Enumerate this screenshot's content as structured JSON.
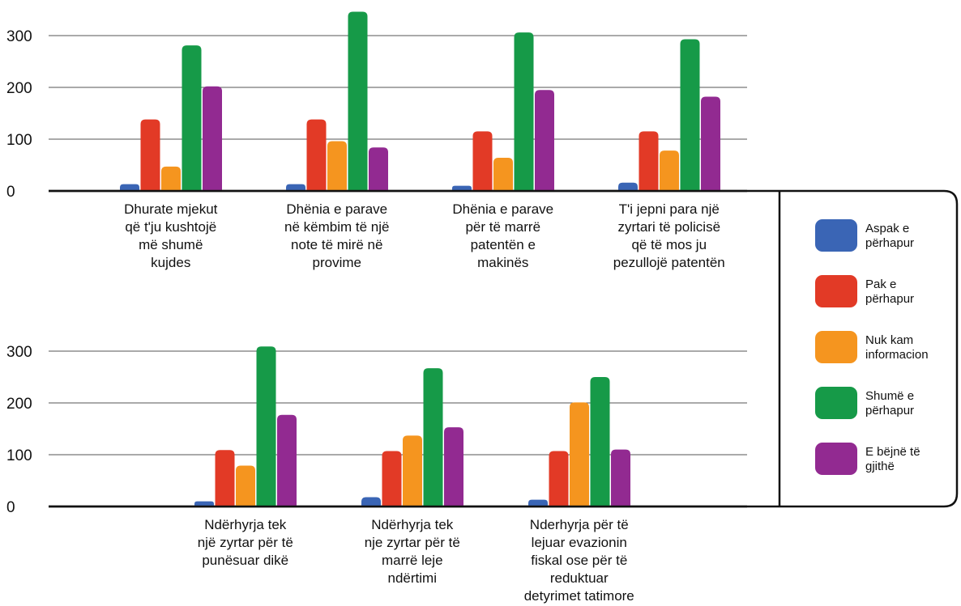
{
  "chart_data": [
    {
      "type": "bar",
      "ylim": [
        0,
        350
      ],
      "yticks": [
        0,
        100,
        200,
        300
      ],
      "grid": true,
      "categories": [
        [
          "Dhurate mjekut",
          "që t'ju kushtojë",
          "më shumë",
          "kujdes"
        ],
        [
          "Dhënia e parave",
          "në këmbim të një",
          "note të mirë në",
          "provime"
        ],
        [
          "Dhënia e parave",
          "për të marrë",
          "patentën e",
          "makinës"
        ],
        [
          "T'i jepni para një",
          "zyrtari të policisë",
          "që të mos ju",
          "pezullojë patentën"
        ]
      ],
      "series": [
        {
          "name": "Aspak e përhapur",
          "values": [
            13,
            13,
            10,
            16
          ]
        },
        {
          "name": "Pak e përhapur",
          "values": [
            138,
            138,
            115,
            115
          ]
        },
        {
          "name": "Nuk kam informacion",
          "values": [
            47,
            96,
            64,
            78
          ]
        },
        {
          "name": "Shumë e përhapur",
          "values": [
            281,
            346,
            306,
            293
          ]
        },
        {
          "name": "E bëjnë të gjithë",
          "values": [
            202,
            84,
            195,
            182
          ]
        }
      ]
    },
    {
      "type": "bar",
      "ylim": [
        0,
        350
      ],
      "yticks": [
        0,
        100,
        200,
        300
      ],
      "grid": true,
      "categories": [
        [
          "Ndërhyrja tek",
          "një zyrtar për të",
          "punësuar dikë"
        ],
        [
          "Ndërhyrja tek",
          "nje zyrtar për të",
          "marrë leje",
          "ndërtimi"
        ],
        [
          "Nderhyrja për të",
          "lejuar evazionin",
          "fiskal ose për të",
          "reduktuar",
          "detyrimet tatimore"
        ]
      ],
      "series": [
        {
          "name": "Aspak e përhapur",
          "values": [
            10,
            18,
            13
          ]
        },
        {
          "name": "Pak e përhapur",
          "values": [
            109,
            107,
            107
          ]
        },
        {
          "name": "Nuk kam informacion",
          "values": [
            79,
            137,
            201
          ]
        },
        {
          "name": "Shumë e përhapur",
          "values": [
            309,
            267,
            250
          ]
        },
        {
          "name": "E bëjnë të gjithë",
          "values": [
            177,
            153,
            110
          ]
        }
      ]
    }
  ],
  "legend": {
    "placement": "right",
    "items": [
      {
        "label": [
          "Aspak e",
          "përhapur"
        ],
        "color": "#3a65b5"
      },
      {
        "label": [
          "Pak e",
          "përhapur"
        ],
        "color": "#e23a26"
      },
      {
        "label": [
          "Nuk kam",
          "informacion"
        ],
        "color": "#f5951f"
      },
      {
        "label": [
          "Shumë e",
          "përhapur"
        ],
        "color": "#169a48"
      },
      {
        "label": [
          "E bëjnë të",
          "gjithë"
        ],
        "color": "#922a91"
      }
    ]
  }
}
